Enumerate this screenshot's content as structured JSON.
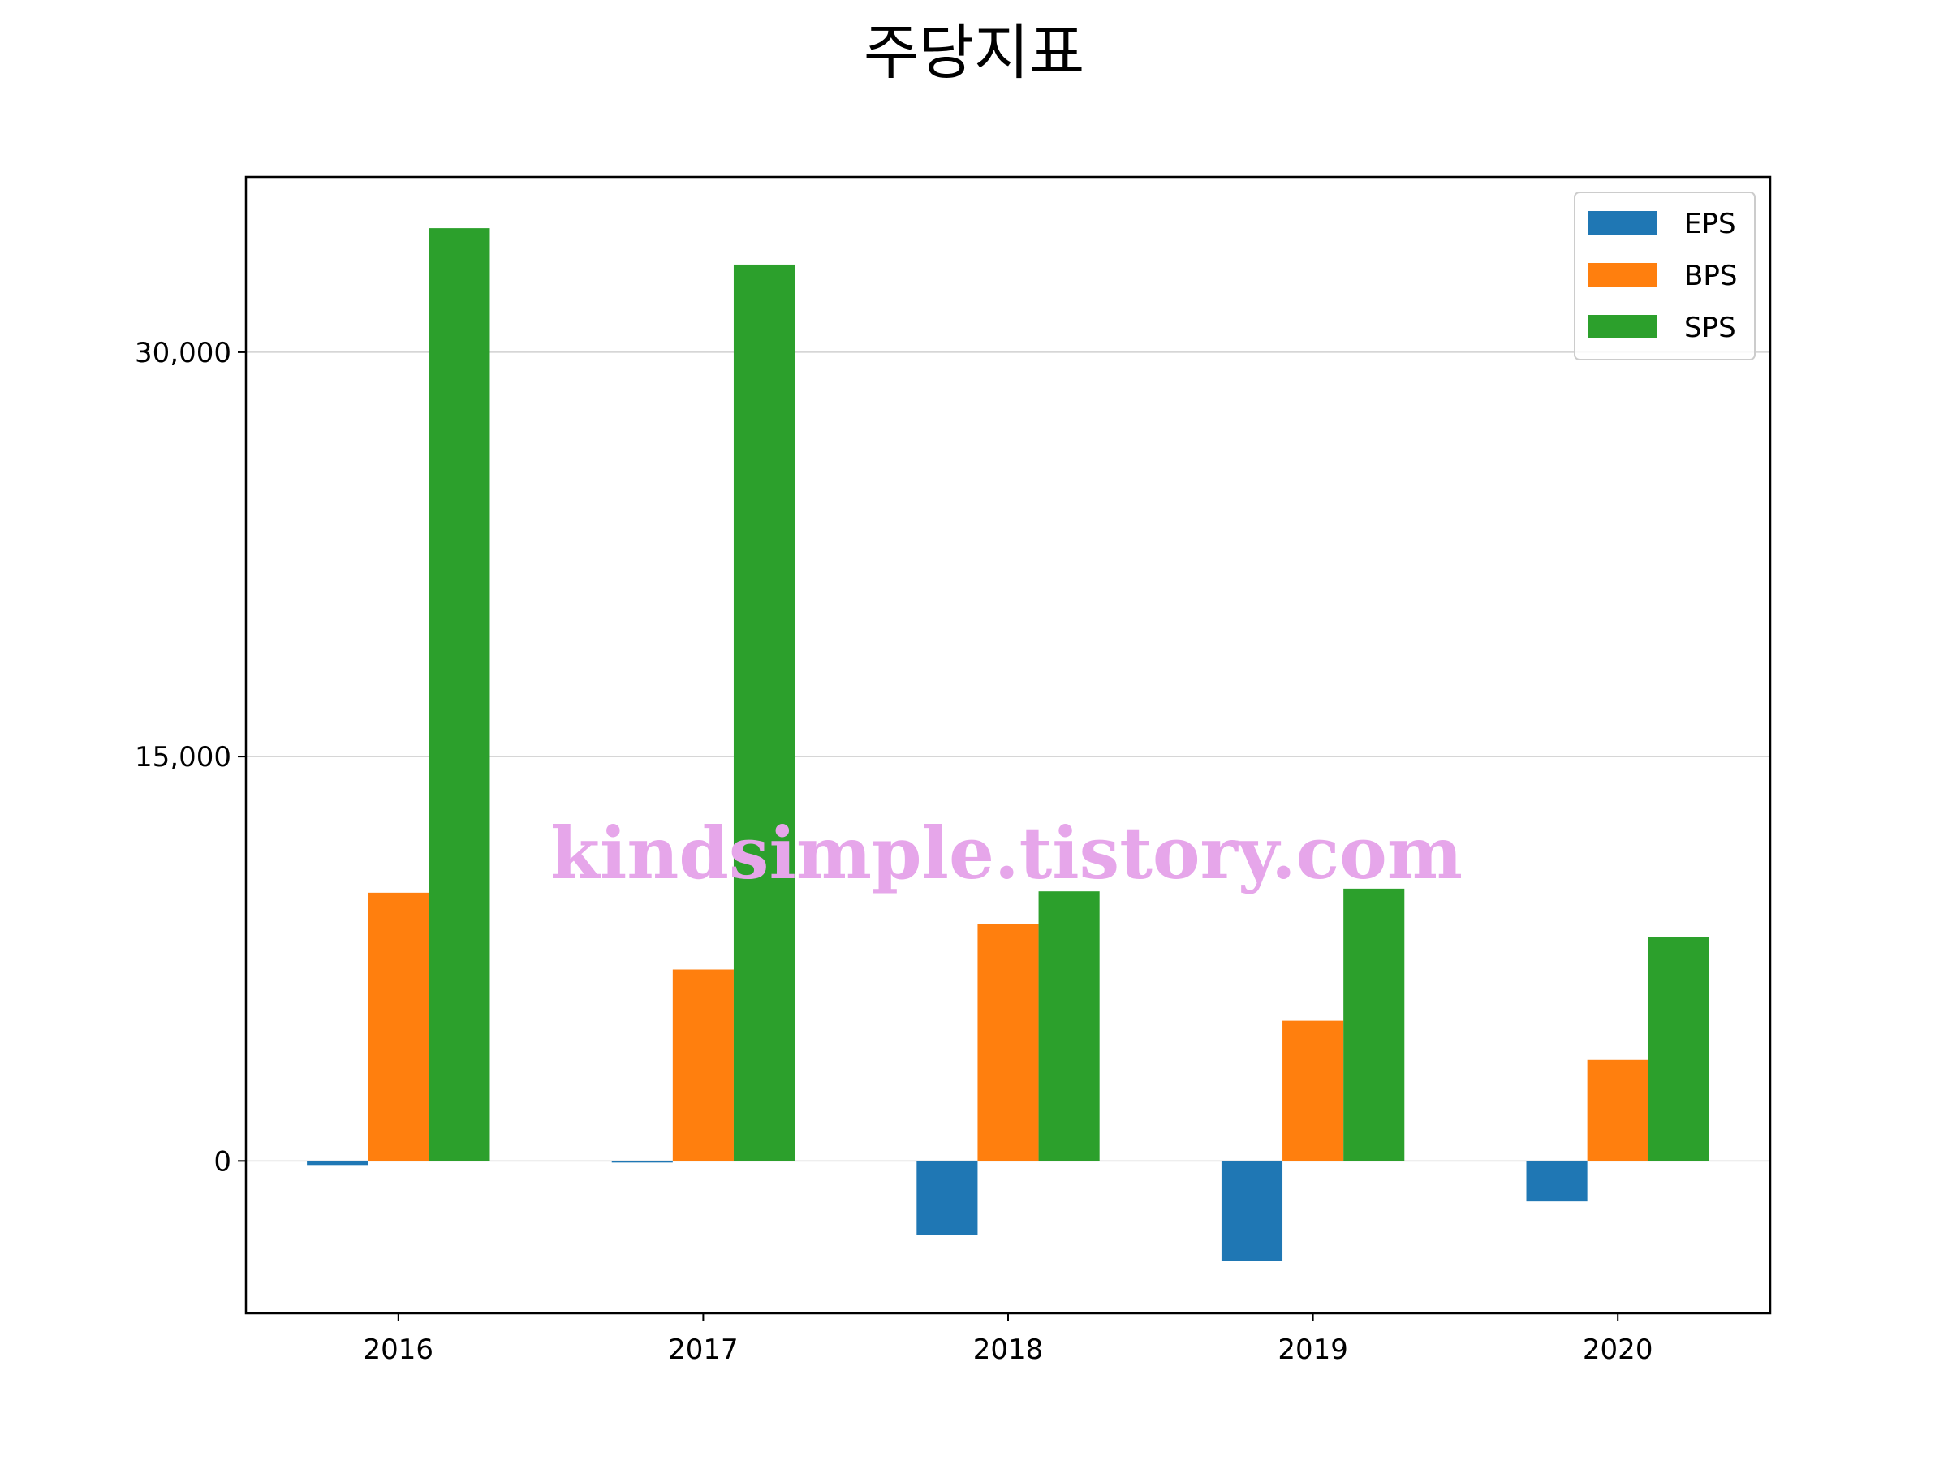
{
  "chart_data": {
    "type": "bar",
    "title": "주당지표",
    "xlabel": "",
    "ylabel": "",
    "categories": [
      "2016",
      "2017",
      "2018",
      "2019",
      "2020"
    ],
    "series": [
      {
        "name": "EPS",
        "color": "#1f77b4",
        "values": [
          -150,
          -60,
          -2750,
          -3700,
          -1500
        ]
      },
      {
        "name": "BPS",
        "color": "#ff7f0e",
        "values": [
          9950,
          7100,
          8800,
          5200,
          3750
        ]
      },
      {
        "name": "SPS",
        "color": "#2ca02c",
        "values": [
          34600,
          33250,
          10000,
          10100,
          8300
        ]
      }
    ],
    "ylim": [
      -5650,
      36500
    ],
    "yticks": [
      0,
      15000,
      30000
    ],
    "ytick_labels": [
      "0",
      "15,000",
      "30,000"
    ],
    "grid": "horizontal",
    "legend": "top-right",
    "watermark": "kindsimple.tistory.com"
  }
}
